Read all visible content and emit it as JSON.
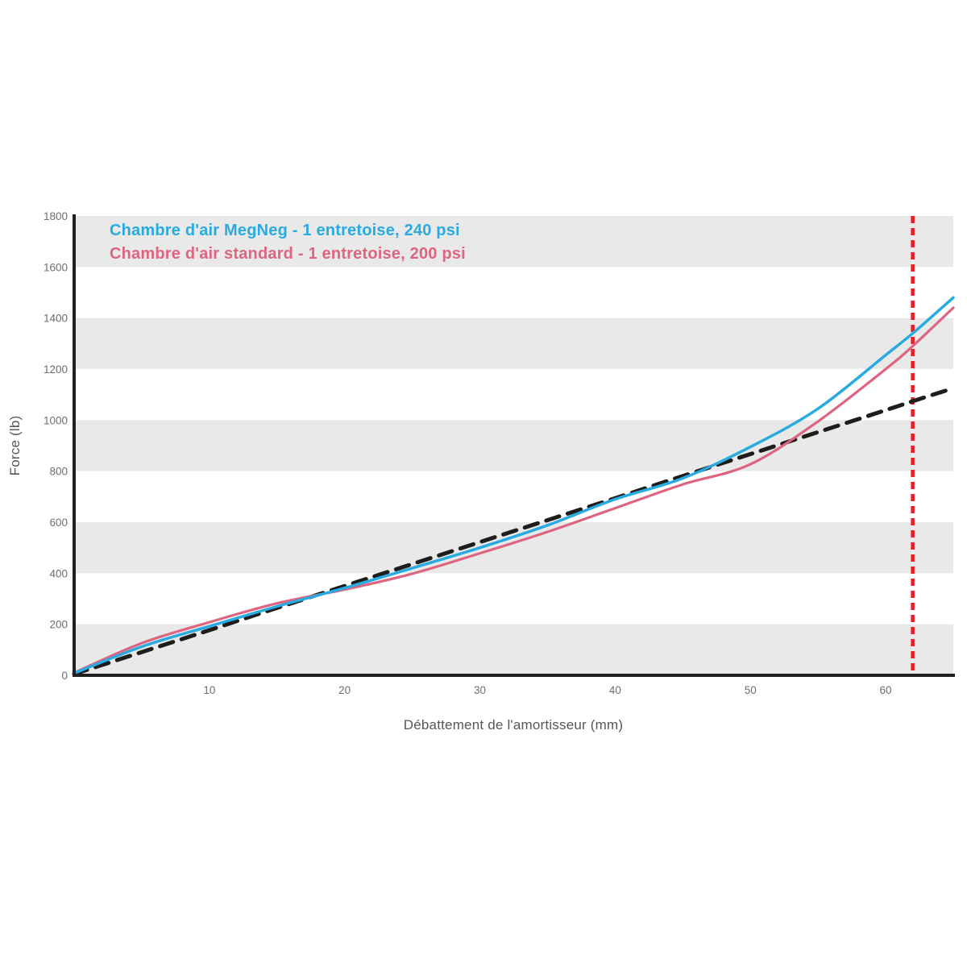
{
  "chart_data": {
    "type": "line",
    "title": "",
    "xlabel": "Débattement de l'amortisseur (mm)",
    "ylabel": "Force (lb)",
    "xlim": [
      0,
      65
    ],
    "ylim": [
      0,
      1800
    ],
    "x_ticks": [
      10,
      20,
      30,
      40,
      50,
      60
    ],
    "y_ticks": [
      0,
      200,
      400,
      600,
      800,
      1000,
      1200,
      1400,
      1600,
      1800
    ],
    "grid_bands": [
      [
        0,
        200
      ],
      [
        400,
        600
      ],
      [
        800,
        1000
      ],
      [
        1200,
        1400
      ],
      [
        1600,
        1800
      ]
    ],
    "legend_position": "top-left",
    "x": [
      0,
      5,
      10,
      15,
      20,
      25,
      30,
      35,
      40,
      45,
      50,
      55,
      60,
      62,
      65
    ],
    "series": [
      {
        "name": "Chambre d'air MegNeg - 1 entretoise, 240 psi",
        "color": "#29abe2",
        "style": "solid",
        "width": 3.5,
        "values": [
          8,
          112,
          192,
          270,
          342,
          420,
          500,
          588,
          690,
          772,
          895,
          1045,
          1255,
          1340,
          1480
        ]
      },
      {
        "name": "Chambre d'air standard - 1 entretoise, 200 psi",
        "color": "#dd6580",
        "style": "solid",
        "width": 3.2,
        "values": [
          10,
          126,
          208,
          282,
          336,
          398,
          478,
          562,
          655,
          748,
          827,
          995,
          1200,
          1290,
          1440
        ]
      },
      {
        "name": "reference-lineaire",
        "color": "#1d1d1b",
        "style": "dashed",
        "width": 5,
        "values": [
          5,
          91,
          177,
          264,
          350,
          436,
          522,
          608,
          694,
          781,
          867,
          953,
          1039,
          1074,
          1125
        ]
      }
    ],
    "vline": {
      "x": 62,
      "color": "#ed1c24",
      "style": "dashed"
    },
    "colors": {
      "band": "#e9e9e9",
      "axis_line": "#231f20",
      "tick_text": "#6d6e71",
      "axis_title": "#55565a"
    }
  }
}
